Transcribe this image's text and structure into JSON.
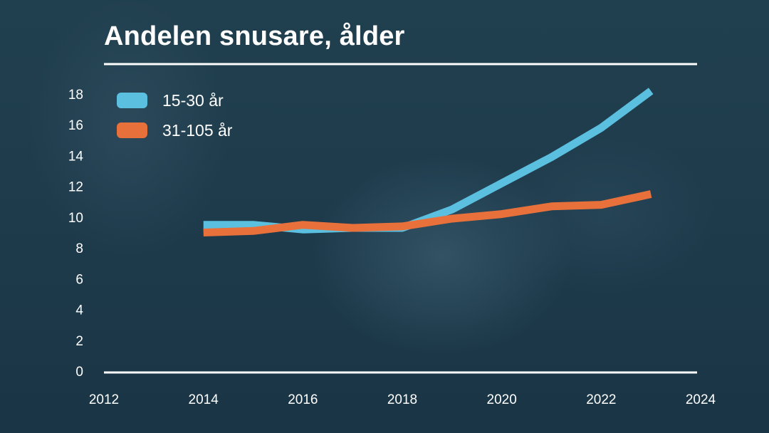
{
  "chart_data": {
    "type": "line",
    "title": "Andelen snusare, ålder",
    "xlabel": "",
    "ylabel": "",
    "xlim": [
      2012,
      2024
    ],
    "ylim": [
      0,
      18.5
    ],
    "x_ticks": [
      2012,
      2014,
      2016,
      2018,
      2020,
      2022,
      2024
    ],
    "y_ticks": [
      0,
      2,
      4,
      6,
      8,
      10,
      12,
      14,
      16,
      18
    ],
    "grid": false,
    "legend_position": "top-left",
    "series": [
      {
        "name": "15-30 år",
        "color": "#5bc0e0",
        "x": [
          2014,
          2015,
          2016,
          2017,
          2018,
          2019,
          2020,
          2021,
          2022,
          2023
        ],
        "values": [
          9.5,
          9.5,
          9.2,
          9.3,
          9.3,
          10.5,
          12.2,
          13.9,
          15.8,
          18.2
        ]
      },
      {
        "name": "31-105 år",
        "color": "#e8703a",
        "x": [
          2014,
          2015,
          2016,
          2017,
          2018,
          2019,
          2020,
          2021,
          2022,
          2023
        ],
        "values": [
          9.0,
          9.1,
          9.5,
          9.3,
          9.4,
          9.9,
          10.2,
          10.7,
          10.8,
          11.5
        ]
      }
    ]
  }
}
